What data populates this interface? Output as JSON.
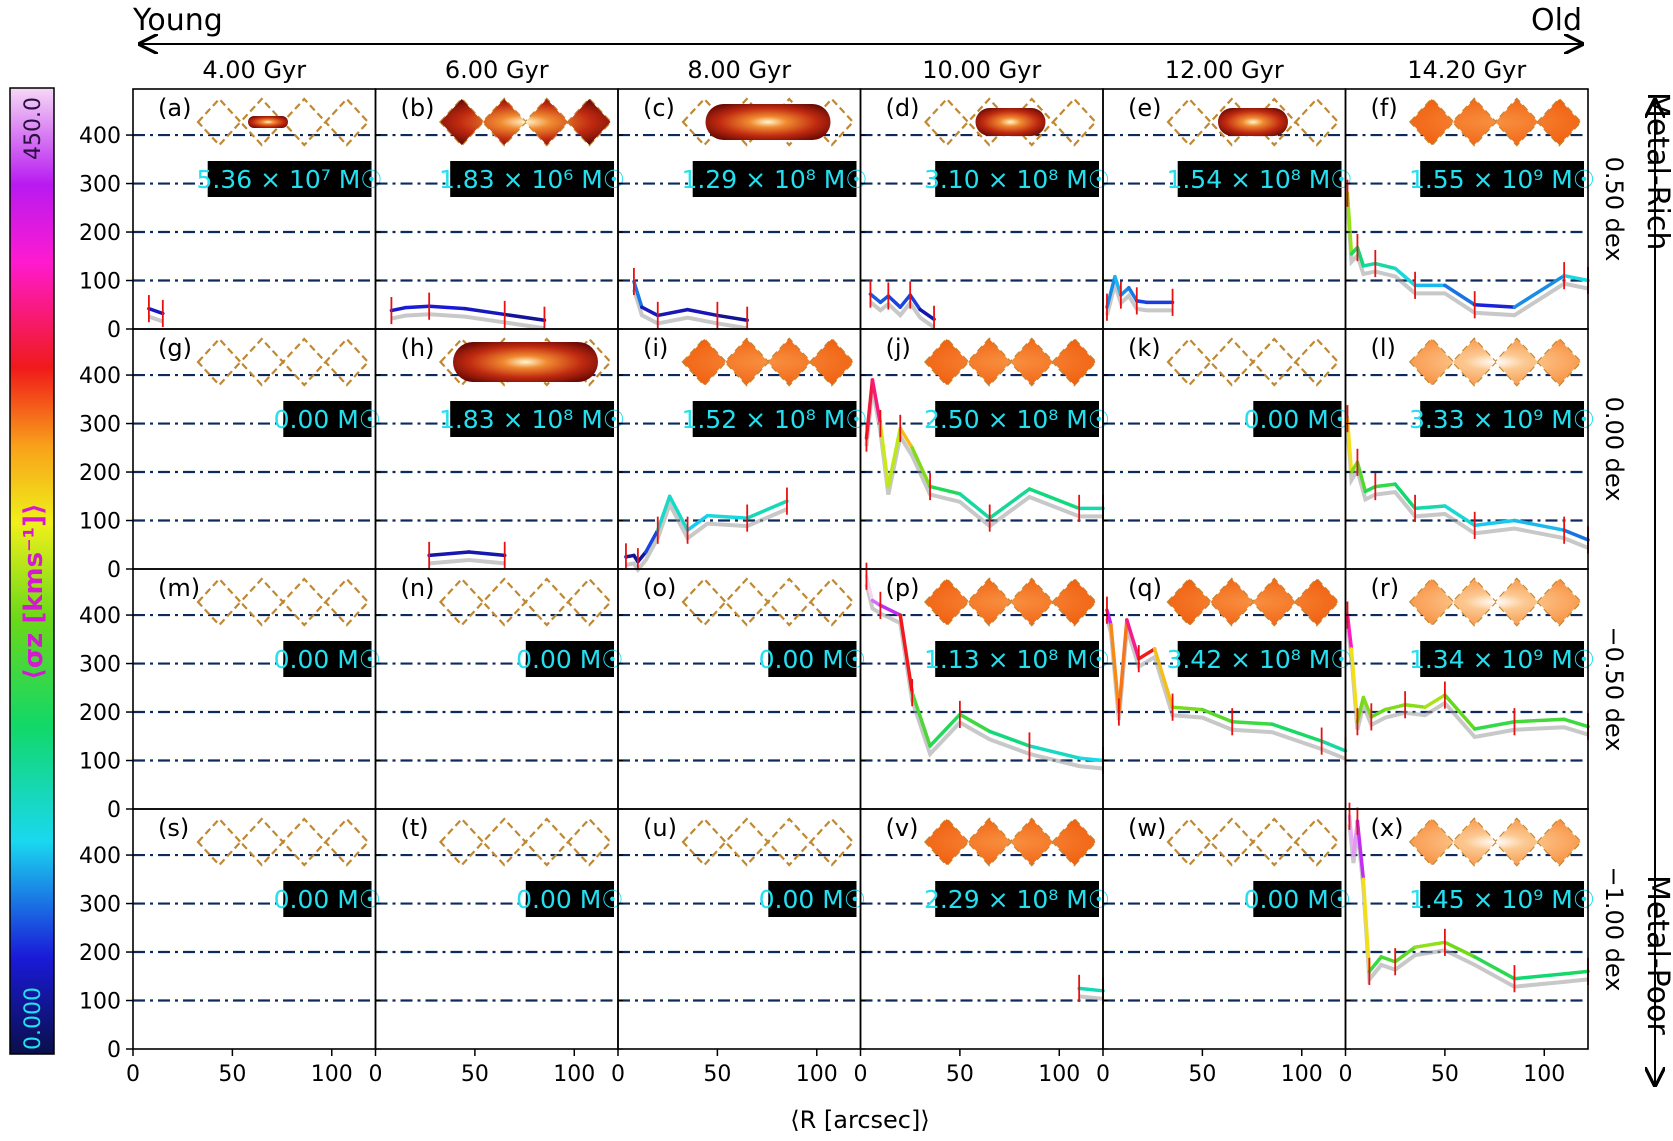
{
  "figure": {
    "age_axis": {
      "left": "Young",
      "right": "Old"
    },
    "metal_axis": {
      "top": "Metal-Rich",
      "bottom": "Metal-Poor"
    },
    "xlabel": "⟨R [arcsec]⟩",
    "colorbar": {
      "label": "⟨σz [kms⁻¹]⟩",
      "min_label": "0.000",
      "max_label": "450.0",
      "range": [
        0,
        450
      ]
    }
  },
  "chart_data": {
    "type": "line",
    "columns": [
      "4.00 Gyr",
      "6.00 Gyr",
      "8.00 Gyr",
      "10.00 Gyr",
      "12.00 Gyr",
      "14.20 Gyr"
    ],
    "rows": [
      "0.50 dex",
      "0.00 dex",
      "−0.50 dex",
      "−1.00 dex"
    ],
    "xlim": [
      0,
      122
    ],
    "ylim": [
      0,
      495
    ],
    "xticks": [
      0,
      50,
      100
    ],
    "yticks": [
      0,
      100,
      200,
      300,
      400
    ],
    "reference_lines": [
      100,
      200,
      300,
      400
    ],
    "panels": [
      {
        "label": "(a)",
        "mass": "5.36 × 10⁷ M☉",
        "map": "small",
        "series": [
          [
            8,
            42
          ],
          [
            15,
            32
          ]
        ]
      },
      {
        "label": "(b)",
        "mass": "1.83 × 10⁶ M☉",
        "map": "full-dark",
        "series": [
          [
            8,
            38
          ],
          [
            15,
            44
          ],
          [
            27,
            47
          ],
          [
            45,
            42
          ],
          [
            65,
            30
          ],
          [
            85,
            18
          ]
        ]
      },
      {
        "label": "(c)",
        "mass": "1.29 × 10⁸ M☉",
        "map": "large",
        "series": [
          [
            8,
            98
          ],
          [
            12,
            45
          ],
          [
            20,
            28
          ],
          [
            35,
            40
          ],
          [
            50,
            28
          ],
          [
            65,
            18
          ]
        ]
      },
      {
        "label": "(d)",
        "mass": "3.10 × 10⁸ M☉",
        "map": "medium",
        "series": [
          [
            5,
            72
          ],
          [
            10,
            55
          ],
          [
            14,
            68
          ],
          [
            20,
            45
          ],
          [
            25,
            70
          ],
          [
            30,
            40
          ],
          [
            37,
            20
          ]
        ]
      },
      {
        "label": "(e)",
        "mass": "1.54 × 10⁸ M☉",
        "map": "medium",
        "series": [
          [
            2,
            45
          ],
          [
            6,
            108
          ],
          [
            9,
            70
          ],
          [
            13,
            85
          ],
          [
            17,
            58
          ],
          [
            22,
            55
          ],
          [
            35,
            55
          ]
        ]
      },
      {
        "label": "(f)",
        "mass": "1.55 × 10⁹ M☉",
        "map": "full-orange",
        "series": [
          [
            1,
            280
          ],
          [
            3,
            155
          ],
          [
            6,
            168
          ],
          [
            9,
            130
          ],
          [
            15,
            135
          ],
          [
            25,
            125
          ],
          [
            35,
            90
          ],
          [
            50,
            90
          ],
          [
            65,
            50
          ],
          [
            85,
            45
          ],
          [
            110,
            110
          ],
          [
            122,
            100
          ]
        ]
      },
      {
        "label": "(g)",
        "mass": "0.00 M☉",
        "map": "empty",
        "series": []
      },
      {
        "label": "(h)",
        "mass": "1.83 × 10⁸ M☉",
        "map": "large-dark",
        "series": [
          [
            27,
            28
          ],
          [
            47,
            35
          ],
          [
            65,
            28
          ]
        ]
      },
      {
        "label": "(i)",
        "mass": "1.52 × 10⁸ M☉",
        "map": "full-orange",
        "series": [
          [
            4,
            25
          ],
          [
            8,
            28
          ],
          [
            10,
            15
          ],
          [
            14,
            35
          ],
          [
            20,
            80
          ],
          [
            26,
            150
          ],
          [
            35,
            80
          ],
          [
            45,
            110
          ],
          [
            65,
            105
          ],
          [
            85,
            140
          ]
        ]
      },
      {
        "label": "(j)",
        "mass": "2.50 × 10⁸ M☉",
        "map": "full-orange",
        "series": [
          [
            3,
            270
          ],
          [
            6,
            390
          ],
          [
            10,
            300
          ],
          [
            14,
            170
          ],
          [
            20,
            290
          ],
          [
            26,
            250
          ],
          [
            35,
            170
          ],
          [
            50,
            155
          ],
          [
            65,
            105
          ],
          [
            85,
            165
          ],
          [
            110,
            125
          ],
          [
            122,
            125
          ]
        ]
      },
      {
        "label": "(k)",
        "mass": "0.00 M☉",
        "map": "empty",
        "series": []
      },
      {
        "label": "(l)",
        "mass": "3.33 × 10⁹ M☉",
        "map": "full-light",
        "series": [
          [
            1,
            310
          ],
          [
            3,
            200
          ],
          [
            6,
            220
          ],
          [
            10,
            160
          ],
          [
            15,
            170
          ],
          [
            25,
            175
          ],
          [
            35,
            125
          ],
          [
            50,
            130
          ],
          [
            65,
            90
          ],
          [
            85,
            100
          ],
          [
            110,
            80
          ],
          [
            122,
            60
          ]
        ]
      },
      {
        "label": "(m)",
        "mass": "0.00 M☉",
        "map": "empty",
        "series": []
      },
      {
        "label": "(n)",
        "mass": "0.00 M☉",
        "map": "empty",
        "series": []
      },
      {
        "label": "(o)",
        "mass": "0.00 M☉",
        "map": "empty",
        "series": []
      },
      {
        "label": "(p)",
        "mass": "1.13 × 10⁸ M☉",
        "map": "full-orange",
        "series": [
          [
            3,
            480
          ],
          [
            6,
            430
          ],
          [
            10,
            420
          ],
          [
            20,
            400
          ],
          [
            26,
            240
          ],
          [
            35,
            130
          ],
          [
            50,
            195
          ],
          [
            65,
            160
          ],
          [
            85,
            130
          ],
          [
            110,
            105
          ],
          [
            122,
            100
          ]
        ]
      },
      {
        "label": "(q)",
        "mass": "3.42 × 10⁸ M☉",
        "map": "full-orange",
        "series": [
          [
            2,
            410
          ],
          [
            4,
            380
          ],
          [
            8,
            200
          ],
          [
            12,
            390
          ],
          [
            18,
            310
          ],
          [
            26,
            330
          ],
          [
            35,
            210
          ],
          [
            50,
            205
          ],
          [
            65,
            180
          ],
          [
            85,
            175
          ],
          [
            110,
            140
          ],
          [
            122,
            120
          ]
        ]
      },
      {
        "label": "(r)",
        "mass": "1.34 × 10⁹ M☉",
        "map": "full-light",
        "series": [
          [
            1,
            400
          ],
          [
            3,
            330
          ],
          [
            6,
            180
          ],
          [
            9,
            230
          ],
          [
            13,
            190
          ],
          [
            20,
            205
          ],
          [
            30,
            215
          ],
          [
            40,
            210
          ],
          [
            50,
            235
          ],
          [
            65,
            165
          ],
          [
            85,
            180
          ],
          [
            110,
            185
          ],
          [
            122,
            170
          ]
        ]
      },
      {
        "label": "(s)",
        "mass": "0.00 M☉",
        "map": "empty",
        "series": []
      },
      {
        "label": "(t)",
        "mass": "0.00 M☉",
        "map": "empty",
        "series": []
      },
      {
        "label": "(u)",
        "mass": "0.00 M☉",
        "map": "empty",
        "series": []
      },
      {
        "label": "(v)",
        "mass": "2.29 × 10⁸ M☉",
        "map": "full-orange",
        "series": [
          [
            110,
            125
          ],
          [
            122,
            120
          ]
        ]
      },
      {
        "label": "(w)",
        "mass": "0.00 M☉",
        "map": "empty",
        "series": []
      },
      {
        "label": "(x)",
        "mass": "1.45 × 10⁹ M☉",
        "map": "full-light",
        "series": [
          [
            2,
            480
          ],
          [
            4,
            400
          ],
          [
            6,
            470
          ],
          [
            9,
            350
          ],
          [
            12,
            160
          ],
          [
            18,
            190
          ],
          [
            25,
            180
          ],
          [
            35,
            210
          ],
          [
            50,
            220
          ],
          [
            65,
            190
          ],
          [
            85,
            145
          ],
          [
            110,
            155
          ],
          [
            122,
            160
          ]
        ]
      }
    ]
  }
}
